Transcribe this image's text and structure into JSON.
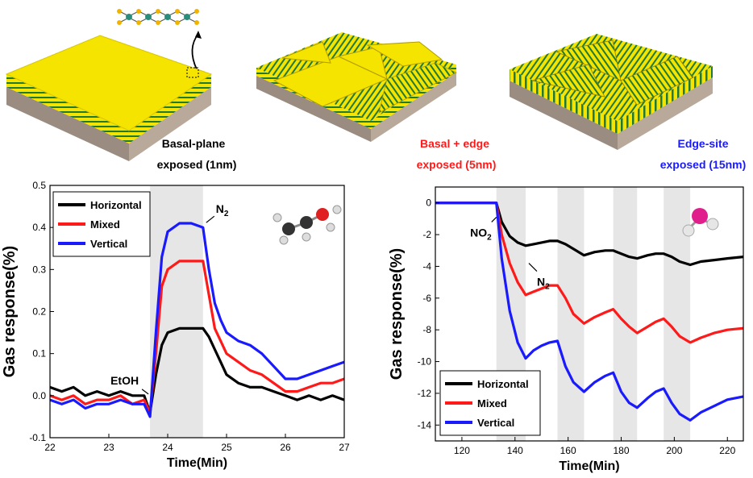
{
  "colors": {
    "horizontal": "#000000",
    "mixed": "#ff1a1a",
    "vertical": "#1a1aff",
    "layer_yellow": "#f5e300",
    "layer_green": "#1f7a3a",
    "substrate": "#b8a99a",
    "shade": "#e6e6e6"
  },
  "schematics": [
    {
      "line1": "Basal-plane",
      "line2": "exposed (1nm)",
      "color": "#000000"
    },
    {
      "line1": "Basal + edge",
      "line2": "exposed (5nm)",
      "color": "#ff1a1a"
    },
    {
      "line1": "Edge-site",
      "line2": "exposed (15nm)",
      "color": "#1a1aff"
    }
  ],
  "chart_data": [
    {
      "type": "line",
      "xlabel": "Time(Min)",
      "ylabel": "Gas response(%)",
      "xlim": [
        22,
        27
      ],
      "ylim": [
        -0.1,
        0.5
      ],
      "xticks": [
        22,
        23,
        24,
        25,
        26,
        27
      ],
      "yticks": [
        -0.1,
        0.0,
        0.1,
        0.2,
        0.3,
        0.4,
        0.5
      ],
      "shaded_regions": [
        [
          23.7,
          24.6
        ]
      ],
      "annotations": [
        {
          "text": "EtOH",
          "sub": "",
          "x": 23.7,
          "y": 0.0
        },
        {
          "text": "N",
          "sub": "2",
          "x": 24.6,
          "y": 0.4
        }
      ],
      "legend": [
        "Horizontal",
        "Mixed",
        "Vertical"
      ],
      "series": [
        {
          "name": "Horizontal",
          "x": [
            22,
            22.2,
            22.4,
            22.6,
            22.8,
            23,
            23.2,
            23.4,
            23.6,
            23.7,
            23.8,
            23.9,
            24,
            24.2,
            24.4,
            24.6,
            24.7,
            24.8,
            24.9,
            25,
            25.2,
            25.4,
            25.6,
            25.8,
            26,
            26.2,
            26.4,
            26.6,
            26.8,
            27
          ],
          "y": [
            0.02,
            0.01,
            0.02,
            0.0,
            0.01,
            0.0,
            0.01,
            0.0,
            0.0,
            -0.04,
            0.05,
            0.12,
            0.15,
            0.16,
            0.16,
            0.16,
            0.14,
            0.11,
            0.08,
            0.05,
            0.03,
            0.02,
            0.02,
            0.01,
            0.0,
            -0.01,
            0.0,
            -0.01,
            0.0,
            -0.01
          ]
        },
        {
          "name": "Mixed",
          "x": [
            22,
            22.2,
            22.4,
            22.6,
            22.8,
            23,
            23.2,
            23.4,
            23.6,
            23.7,
            23.8,
            23.9,
            24,
            24.2,
            24.4,
            24.6,
            24.7,
            24.8,
            24.9,
            25,
            25.2,
            25.4,
            25.6,
            25.8,
            26,
            26.2,
            26.4,
            26.6,
            26.8,
            27
          ],
          "y": [
            0.0,
            -0.01,
            0.0,
            -0.02,
            -0.01,
            -0.01,
            0.0,
            -0.02,
            -0.01,
            -0.04,
            0.1,
            0.26,
            0.3,
            0.32,
            0.32,
            0.32,
            0.24,
            0.16,
            0.13,
            0.1,
            0.08,
            0.06,
            0.05,
            0.03,
            0.01,
            0.01,
            0.02,
            0.03,
            0.03,
            0.04
          ]
        },
        {
          "name": "Vertical",
          "x": [
            22,
            22.2,
            22.4,
            22.6,
            22.8,
            23,
            23.2,
            23.4,
            23.6,
            23.7,
            23.8,
            23.9,
            24,
            24.2,
            24.4,
            24.6,
            24.7,
            24.8,
            24.9,
            25,
            25.2,
            25.4,
            25.6,
            25.8,
            26,
            26.2,
            26.4,
            26.6,
            26.8,
            27
          ],
          "y": [
            -0.01,
            -0.02,
            -0.01,
            -0.03,
            -0.02,
            -0.02,
            -0.01,
            -0.02,
            -0.02,
            -0.05,
            0.15,
            0.33,
            0.39,
            0.41,
            0.41,
            0.4,
            0.3,
            0.22,
            0.18,
            0.15,
            0.13,
            0.12,
            0.1,
            0.07,
            0.04,
            0.04,
            0.05,
            0.06,
            0.07,
            0.08
          ]
        }
      ]
    },
    {
      "type": "line",
      "xlabel": "Time(Min)",
      "ylabel": "Gas response(%)",
      "xlim": [
        110,
        226
      ],
      "ylim": [
        -15,
        1
      ],
      "xticks": [
        120,
        140,
        160,
        180,
        200,
        220
      ],
      "yticks": [
        0,
        -2,
        -4,
        -6,
        -8,
        -10,
        -12,
        -14
      ],
      "shaded_regions": [
        [
          133,
          144
        ],
        [
          156,
          166
        ],
        [
          177,
          186
        ],
        [
          196,
          206
        ]
      ],
      "annotations": [
        {
          "text": "NO",
          "sub": "2",
          "x": 133,
          "y": -0.8
        },
        {
          "text": "N",
          "sub": "2",
          "x": 144,
          "y": -3.7
        }
      ],
      "legend": [
        "Horizontal",
        "Mixed",
        "Vertical"
      ],
      "series": [
        {
          "name": "Horizontal",
          "x": [
            110,
            120,
            130,
            133,
            135,
            138,
            141,
            144,
            147,
            150,
            153,
            156,
            159,
            162,
            166,
            170,
            174,
            177,
            180,
            183,
            186,
            190,
            193,
            196,
            199,
            202,
            206,
            210,
            215,
            220,
            226
          ],
          "y": [
            0,
            0,
            0,
            0,
            -1.2,
            -2.1,
            -2.5,
            -2.7,
            -2.6,
            -2.5,
            -2.4,
            -2.4,
            -2.6,
            -2.9,
            -3.3,
            -3.1,
            -3.0,
            -3.0,
            -3.2,
            -3.4,
            -3.5,
            -3.3,
            -3.2,
            -3.2,
            -3.4,
            -3.7,
            -3.9,
            -3.7,
            -3.6,
            -3.5,
            -3.4
          ]
        },
        {
          "name": "Mixed",
          "x": [
            110,
            120,
            130,
            133,
            135,
            138,
            141,
            144,
            147,
            150,
            153,
            156,
            159,
            162,
            166,
            170,
            174,
            177,
            180,
            183,
            186,
            190,
            193,
            196,
            199,
            202,
            206,
            210,
            215,
            220,
            226
          ],
          "y": [
            0,
            0,
            0,
            0,
            -2.0,
            -3.8,
            -5.0,
            -5.8,
            -5.6,
            -5.4,
            -5.2,
            -5.2,
            -6.0,
            -7.0,
            -7.6,
            -7.2,
            -6.9,
            -6.7,
            -7.3,
            -7.8,
            -8.2,
            -7.8,
            -7.5,
            -7.3,
            -7.8,
            -8.4,
            -8.8,
            -8.5,
            -8.2,
            -8.0,
            -7.9
          ]
        },
        {
          "name": "Vertical",
          "x": [
            110,
            120,
            130,
            133,
            135,
            138,
            141,
            144,
            147,
            150,
            153,
            156,
            159,
            162,
            166,
            170,
            174,
            177,
            180,
            183,
            186,
            190,
            193,
            196,
            199,
            202,
            206,
            210,
            215,
            220,
            226
          ],
          "y": [
            0,
            0,
            0,
            0,
            -3.5,
            -6.8,
            -8.8,
            -9.8,
            -9.3,
            -9.0,
            -8.8,
            -8.7,
            -10.3,
            -11.3,
            -11.9,
            -11.3,
            -10.9,
            -10.7,
            -11.9,
            -12.6,
            -12.9,
            -12.3,
            -11.9,
            -11.7,
            -12.6,
            -13.3,
            -13.7,
            -13.2,
            -12.8,
            -12.4,
            -12.2
          ]
        }
      ]
    }
  ]
}
